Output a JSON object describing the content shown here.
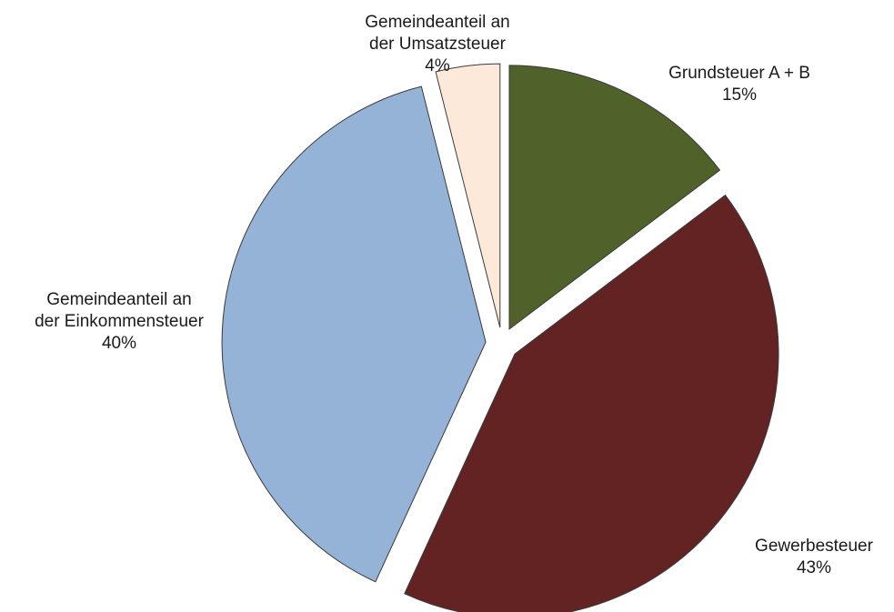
{
  "chart_data": {
    "type": "pie",
    "title": "",
    "legend": "none",
    "start_angle_deg": 0,
    "direction": "clockwise",
    "slices": [
      {
        "label_lines": [
          "Grundsteuer A + B"
        ],
        "percent_label": "15%",
        "value": 15,
        "color": "#4e6229"
      },
      {
        "label_lines": [
          "Gewerbesteuer"
        ],
        "percent_label": "43%",
        "value": 43,
        "color": "#632323"
      },
      {
        "label_lines": [
          "Gemeindeanteil an",
          "der Einkommensteuer"
        ],
        "percent_label": "40%",
        "value": 40,
        "color": "#95b3d7"
      },
      {
        "label_lines": [
          "Gemeindeanteil an",
          "der Umsatzsteuer"
        ],
        "percent_label": "4%",
        "value": 4,
        "color": "#fde9d9"
      }
    ]
  }
}
